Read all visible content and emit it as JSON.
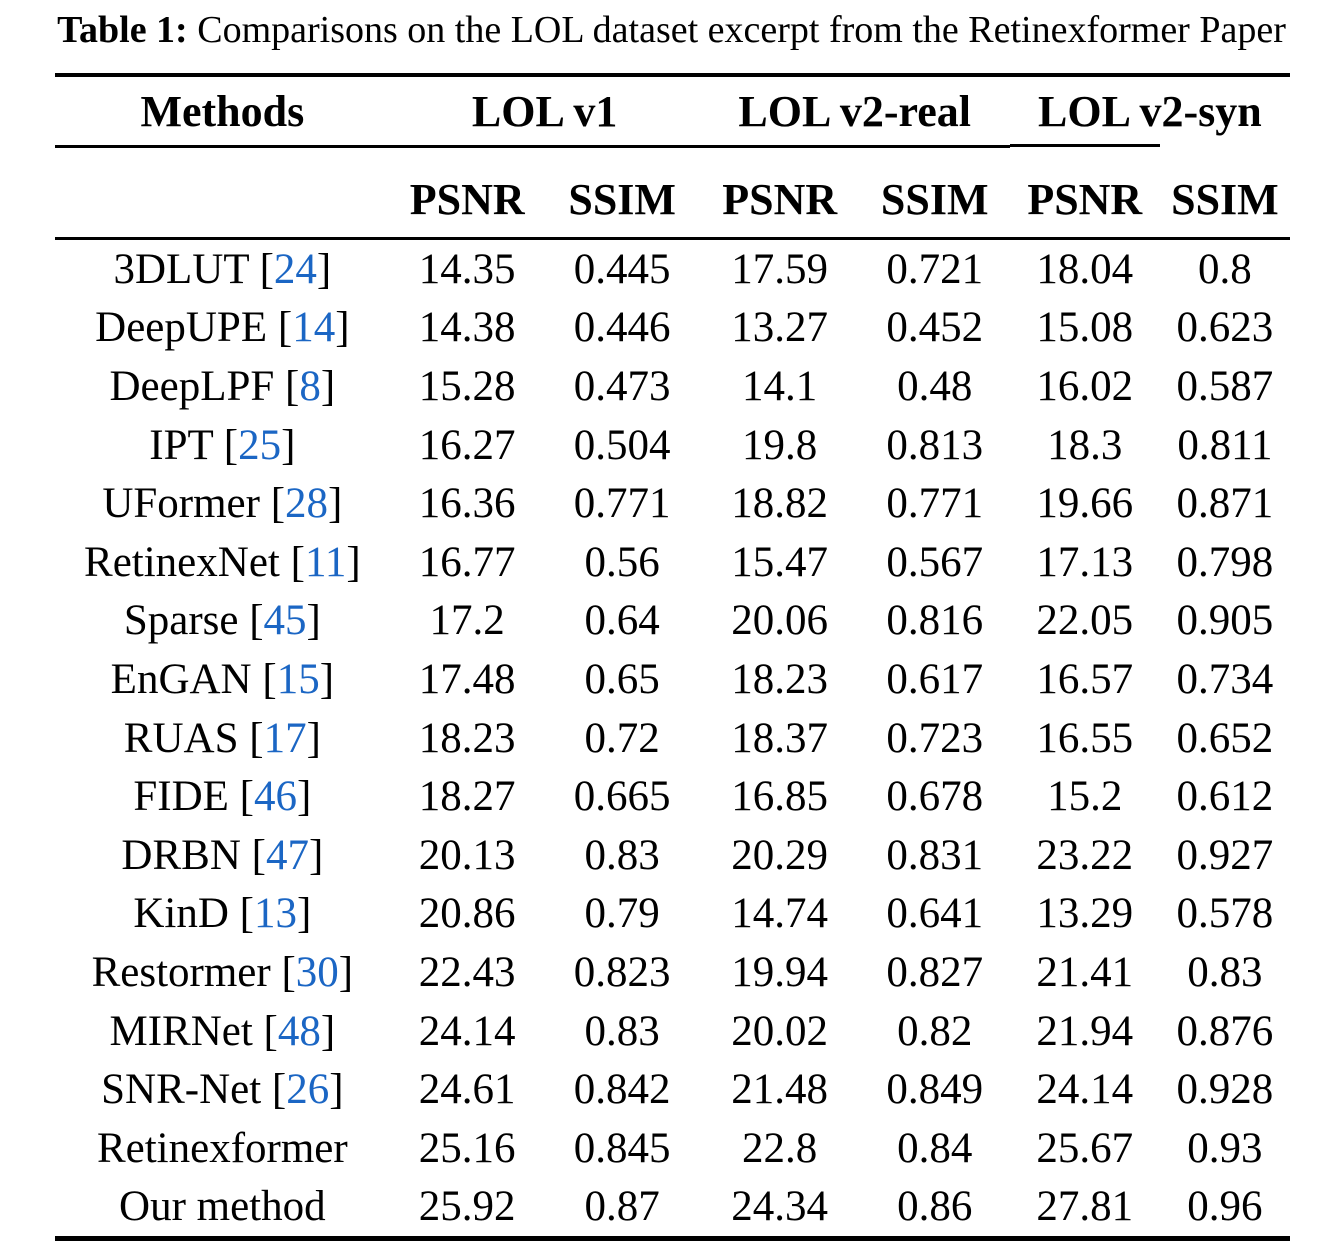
{
  "caption": {
    "label": "Table 1:",
    "text": "Comparisons on the LOL dataset excerpt from the Retinexformer Paper"
  },
  "colors": {
    "text": "#000000",
    "citation_blue": "#1B66C4",
    "background": "#FFFFFF"
  },
  "table": {
    "methods_header": "Methods",
    "groups": [
      "LOL v1",
      "LOL v2-real",
      "LOL v2-syn"
    ],
    "metrics": [
      "PSNR",
      "SSIM",
      "PSNR",
      "SSIM",
      "PSNR",
      "SSIM"
    ],
    "rows": [
      {
        "method": "3DLUT",
        "cite": "24",
        "values": [
          "14.35",
          "0.445",
          "17.59",
          "0.721",
          "18.04",
          "0.8"
        ]
      },
      {
        "method": "DeepUPE",
        "cite": "14",
        "values": [
          "14.38",
          "0.446",
          "13.27",
          "0.452",
          "15.08",
          "0.623"
        ]
      },
      {
        "method": "DeepLPF",
        "cite": "8",
        "values": [
          "15.28",
          "0.473",
          "14.1",
          "0.48",
          "16.02",
          "0.587"
        ]
      },
      {
        "method": "IPT",
        "cite": "25",
        "values": [
          "16.27",
          "0.504",
          "19.8",
          "0.813",
          "18.3",
          "0.811"
        ]
      },
      {
        "method": "UFormer",
        "cite": "28",
        "values": [
          "16.36",
          "0.771",
          "18.82",
          "0.771",
          "19.66",
          "0.871"
        ]
      },
      {
        "method": "RetinexNet",
        "cite": "11",
        "values": [
          "16.77",
          "0.56",
          "15.47",
          "0.567",
          "17.13",
          "0.798"
        ]
      },
      {
        "method": "Sparse",
        "cite": "45",
        "values": [
          "17.2",
          "0.64",
          "20.06",
          "0.816",
          "22.05",
          "0.905"
        ]
      },
      {
        "method": "EnGAN",
        "cite": "15",
        "values": [
          "17.48",
          "0.65",
          "18.23",
          "0.617",
          "16.57",
          "0.734"
        ]
      },
      {
        "method": "RUAS",
        "cite": "17",
        "values": [
          "18.23",
          "0.72",
          "18.37",
          "0.723",
          "16.55",
          "0.652"
        ]
      },
      {
        "method": "FIDE",
        "cite": "46",
        "values": [
          "18.27",
          "0.665",
          "16.85",
          "0.678",
          "15.2",
          "0.612"
        ]
      },
      {
        "method": "DRBN",
        "cite": "47",
        "values": [
          "20.13",
          "0.83",
          "20.29",
          "0.831",
          "23.22",
          "0.927"
        ]
      },
      {
        "method": "KinD",
        "cite": "13",
        "values": [
          "20.86",
          "0.79",
          "14.74",
          "0.641",
          "13.29",
          "0.578"
        ]
      },
      {
        "method": "Restormer",
        "cite": "30",
        "values": [
          "22.43",
          "0.823",
          "19.94",
          "0.827",
          "21.41",
          "0.83"
        ]
      },
      {
        "method": "MIRNet",
        "cite": "48",
        "values": [
          "24.14",
          "0.83",
          "20.02",
          "0.82",
          "21.94",
          "0.876"
        ]
      },
      {
        "method": "SNR-Net",
        "cite": "26",
        "values": [
          "24.61",
          "0.842",
          "21.48",
          "0.849",
          "24.14",
          "0.928"
        ]
      },
      {
        "method": "Retinexformer",
        "cite": null,
        "values": [
          "25.16",
          "0.845",
          "22.8",
          "0.84",
          "25.67",
          "0.93"
        ]
      },
      {
        "method": "Our method",
        "cite": null,
        "values": [
          "25.92",
          "0.87",
          "24.34",
          "0.86",
          "27.81",
          "0.96"
        ]
      }
    ]
  }
}
